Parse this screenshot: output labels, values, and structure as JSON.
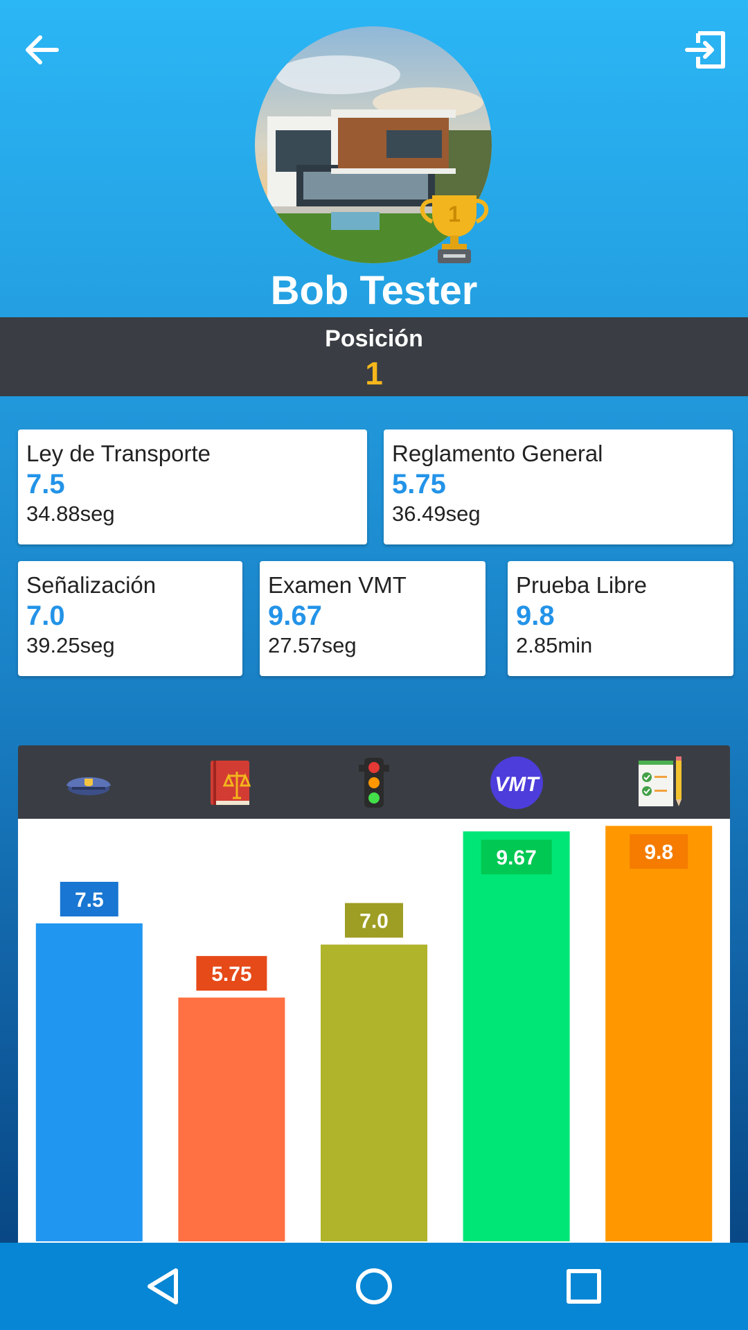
{
  "profile": {
    "name": "Bob Tester",
    "position_label": "Posición",
    "position_value": "1",
    "trophy_rank": "1"
  },
  "cards": [
    {
      "title": "Ley de Transporte",
      "score": "7.5",
      "time": "34.88seg"
    },
    {
      "title": "Reglamento General",
      "score": "5.75",
      "time": "36.49seg"
    },
    {
      "title": "Señalización",
      "score": "7.0",
      "time": "39.25seg"
    },
    {
      "title": "Examen VMT",
      "score": "9.67",
      "time": "27.57seg"
    },
    {
      "title": "Prueba Libre",
      "score": "9.8",
      "time": "2.85min"
    }
  ],
  "chart_icons": [
    "police-cap-icon",
    "law-book-icon",
    "traffic-light-icon",
    "vmt-logo-icon",
    "checklist-icon"
  ],
  "vmt_logo_text": "VMT",
  "chart_data": {
    "type": "bar",
    "categories": [
      "police-cap-icon",
      "law-book-icon",
      "traffic-light-icon",
      "vmt-logo-icon",
      "checklist-icon"
    ],
    "values": [
      7.5,
      5.75,
      7.0,
      9.67,
      9.8
    ],
    "labels": [
      "7.5",
      "5.75",
      "7.0",
      "9.67",
      "9.8"
    ],
    "ylim": [
      0,
      10
    ],
    "grid": false,
    "colors": [
      "#2196f0",
      "#ff7043",
      "#afb42b",
      "#00e676",
      "#ff9800"
    ],
    "label_colors": [
      "#1976d2",
      "#e64a19",
      "#9e9d24",
      "#00c853",
      "#f57c00"
    ]
  },
  "colors": {
    "accent": "#2393e8",
    "position_value": "#f6b71c",
    "dark_bar": "#3a3e44",
    "navbar": "#0686d4"
  }
}
